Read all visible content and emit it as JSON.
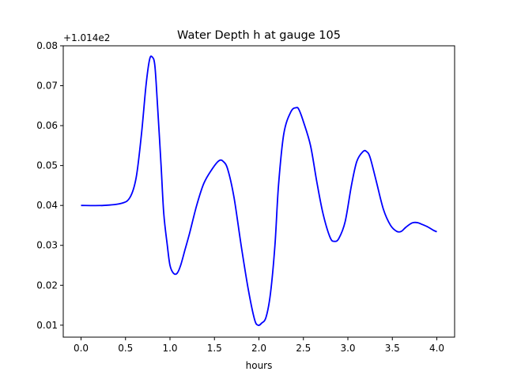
{
  "chart_data": {
    "type": "line",
    "title": "Water Depth h at gauge 105",
    "xlabel": "hours",
    "ylabel": "",
    "y_offset_text": "+1.014e2",
    "xlim": [
      -0.2,
      4.2
    ],
    "ylim": [
      0.007,
      0.08
    ],
    "grid": false,
    "legend": "none",
    "line_color": "#0000ff",
    "x_ticks": [
      "0.0",
      "0.5",
      "1.0",
      "1.5",
      "2.0",
      "2.5",
      "3.0",
      "3.5",
      "4.0"
    ],
    "y_ticks": [
      "0.01",
      "0.02",
      "0.03",
      "0.04",
      "0.05",
      "0.06",
      "0.07",
      "0.08"
    ],
    "series": [
      {
        "x": [
          0.0,
          0.25,
          0.45,
          0.55,
          0.62,
          0.68,
          0.73,
          0.77,
          0.8,
          0.83,
          0.86,
          0.9,
          0.93,
          0.97,
          1.0,
          1.04,
          1.08,
          1.12,
          1.17,
          1.22,
          1.3,
          1.38,
          1.47,
          1.55,
          1.6,
          1.65,
          1.72,
          1.8,
          1.88,
          1.95,
          1.99,
          2.03,
          2.08,
          2.13,
          2.18,
          2.22,
          2.28,
          2.36,
          2.42,
          2.45,
          2.5,
          2.58,
          2.65,
          2.72,
          2.8,
          2.85,
          2.9,
          2.97,
          3.04,
          3.1,
          3.17,
          3.21,
          3.25,
          3.32,
          3.4,
          3.48,
          3.55,
          3.6,
          3.65,
          3.72,
          3.78,
          3.84,
          3.9,
          3.96,
          4.0
        ],
        "y": [
          0.04,
          0.04,
          0.0405,
          0.042,
          0.047,
          0.058,
          0.07,
          0.0765,
          0.0772,
          0.075,
          0.065,
          0.05,
          0.038,
          0.03,
          0.025,
          0.023,
          0.023,
          0.025,
          0.029,
          0.033,
          0.04,
          0.0455,
          0.049,
          0.0512,
          0.051,
          0.049,
          0.042,
          0.03,
          0.019,
          0.0115,
          0.01,
          0.0105,
          0.012,
          0.018,
          0.03,
          0.045,
          0.058,
          0.0635,
          0.0645,
          0.064,
          0.061,
          0.055,
          0.046,
          0.038,
          0.032,
          0.031,
          0.0318,
          0.036,
          0.045,
          0.051,
          0.0535,
          0.0535,
          0.052,
          0.046,
          0.039,
          0.035,
          0.0335,
          0.0335,
          0.0345,
          0.0356,
          0.0357,
          0.0352,
          0.0346,
          0.0338,
          0.0334
        ]
      }
    ]
  }
}
